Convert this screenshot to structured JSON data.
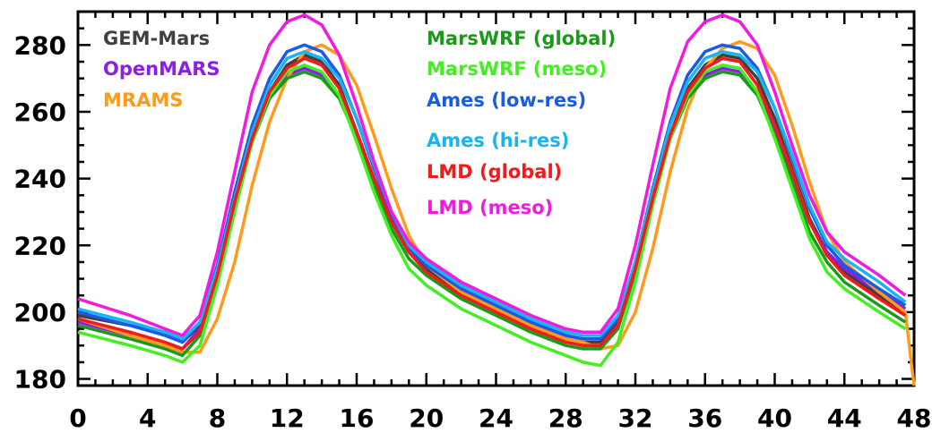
{
  "chart_data": {
    "type": "line",
    "title": "",
    "xlabel": "",
    "ylabel": "",
    "xlim": [
      0,
      48
    ],
    "ylim": [
      178,
      290
    ],
    "xticks": [
      0,
      4,
      8,
      12,
      16,
      20,
      24,
      28,
      32,
      36,
      40,
      44,
      48
    ],
    "yticks": [
      180,
      200,
      220,
      240,
      260,
      280
    ],
    "grid": false,
    "legend_placement": "top, two columns inside plot",
    "series": [
      {
        "name": "GEM-Mars",
        "color": "#404040",
        "x": [
          0,
          3,
          5,
          6,
          7,
          8,
          9,
          10,
          11,
          12,
          13,
          14,
          15,
          16,
          17,
          18,
          19,
          20,
          22,
          24,
          26,
          28,
          29,
          30,
          31,
          32,
          33,
          34,
          35,
          36,
          37,
          38,
          39,
          40,
          41,
          42,
          43,
          44,
          46,
          47.5
        ],
        "y": [
          199,
          196,
          194,
          191,
          196,
          212,
          232,
          252,
          266,
          274,
          277,
          275,
          268,
          254,
          240,
          227,
          218,
          213,
          206,
          201,
          196,
          192,
          191,
          191,
          197,
          213,
          234,
          253,
          267,
          274,
          277,
          276,
          270,
          258,
          243,
          228,
          218,
          212,
          205,
          200
        ]
      },
      {
        "name": "OpenMARS",
        "color": "#8B1FE8",
        "x": [
          0,
          3,
          5,
          6,
          7,
          8,
          9,
          10,
          11,
          12,
          13,
          14,
          15,
          16,
          17,
          18,
          19,
          20,
          22,
          24,
          26,
          28,
          29,
          30,
          31,
          32,
          33,
          34,
          35,
          36,
          37,
          38,
          39,
          40,
          41,
          42,
          43,
          44,
          46,
          47.5
        ],
        "y": [
          197,
          193,
          190,
          189,
          195,
          212,
          233,
          252,
          264,
          271,
          273,
          271,
          265,
          253,
          240,
          228,
          219,
          214,
          207,
          202,
          197,
          193,
          192,
          192,
          198,
          215,
          236,
          253,
          265,
          271,
          273,
          272,
          266,
          255,
          241,
          227,
          218,
          213,
          206,
          201
        ]
      },
      {
        "name": "MRAMS",
        "color": "#FF9A1A",
        "x": [
          0,
          3,
          5,
          6,
          7,
          8,
          9,
          10,
          11,
          12,
          13,
          14,
          15,
          16,
          17,
          18,
          19,
          20,
          22,
          24,
          26,
          28,
          29,
          30,
          31,
          32,
          33,
          34,
          35,
          36,
          37,
          38,
          39,
          40,
          41,
          42,
          43,
          44,
          46,
          47.5,
          48
        ],
        "y": [
          198,
          193,
          190,
          188,
          188,
          198,
          215,
          238,
          257,
          270,
          278,
          280,
          277,
          268,
          253,
          237,
          223,
          214,
          206,
          201,
          196,
          192,
          191,
          189,
          190,
          200,
          219,
          242,
          261,
          273,
          279,
          281,
          279,
          271,
          256,
          239,
          224,
          215,
          206,
          200,
          178
        ]
      },
      {
        "name": "MarsWRF (global)",
        "color": "#1A9A1A",
        "x": [
          0,
          3,
          5,
          6,
          7,
          8,
          9,
          10,
          11,
          12,
          13,
          14,
          15,
          16,
          17,
          18,
          19,
          20,
          22,
          24,
          26,
          28,
          29,
          30,
          31,
          32,
          33,
          34,
          35,
          36,
          37,
          38,
          39,
          40,
          41,
          42,
          43,
          44,
          46,
          47.5
        ],
        "y": [
          196,
          192,
          189,
          187,
          193,
          210,
          231,
          251,
          264,
          270,
          272,
          270,
          264,
          252,
          238,
          225,
          216,
          211,
          204,
          199,
          194,
          190,
          189,
          189,
          195,
          212,
          233,
          252,
          264,
          270,
          272,
          271,
          265,
          253,
          239,
          224,
          215,
          209,
          202,
          197
        ]
      },
      {
        "name": "MarsWRF (meso)",
        "color": "#44EE22",
        "x": [
          0,
          3,
          5,
          6,
          7,
          8,
          9,
          10,
          11,
          12,
          13,
          14,
          15,
          16,
          17,
          18,
          19,
          20,
          22,
          24,
          26,
          28,
          29,
          30,
          31,
          32,
          33,
          34,
          35,
          36,
          37,
          38,
          39,
          40,
          41,
          42,
          43,
          44,
          46,
          47.5
        ],
        "y": [
          194,
          190,
          187,
          185,
          190,
          208,
          230,
          251,
          265,
          272,
          274,
          272,
          265,
          251,
          236,
          223,
          213,
          208,
          201,
          196,
          191,
          187,
          185,
          184,
          191,
          209,
          232,
          252,
          265,
          272,
          274,
          273,
          266,
          252,
          237,
          222,
          212,
          207,
          200,
          195
        ]
      },
      {
        "name": "Ames (low-res)",
        "color": "#1A5AE8",
        "x": [
          0,
          3,
          5,
          6,
          7,
          8,
          9,
          10,
          11,
          12,
          13,
          14,
          15,
          16,
          17,
          18,
          19,
          20,
          22,
          24,
          26,
          28,
          29,
          30,
          31,
          32,
          33,
          34,
          35,
          36,
          37,
          38,
          39,
          40,
          41,
          42,
          43,
          44,
          46,
          47.5
        ],
        "y": [
          200,
          196,
          193,
          191,
          197,
          214,
          236,
          256,
          270,
          278,
          280,
          278,
          271,
          258,
          243,
          229,
          219,
          214,
          207,
          202,
          197,
          193,
          192,
          192,
          198,
          215,
          237,
          257,
          271,
          278,
          280,
          279,
          273,
          261,
          246,
          231,
          220,
          214,
          207,
          202
        ]
      },
      {
        "name": "Ames (hi-res)",
        "color": "#1AB4F0",
        "x": [
          0,
          3,
          5,
          6,
          7,
          8,
          9,
          10,
          11,
          12,
          13,
          14,
          15,
          16,
          17,
          18,
          19,
          20,
          22,
          24,
          26,
          28,
          29,
          30,
          31,
          32,
          33,
          34,
          35,
          36,
          37,
          38,
          39,
          40,
          41,
          42,
          43,
          44,
          46,
          47.5
        ],
        "y": [
          201,
          197,
          194,
          192,
          197,
          213,
          234,
          254,
          268,
          276,
          278,
          276,
          270,
          258,
          244,
          230,
          220,
          215,
          208,
          203,
          198,
          194,
          193,
          193,
          199,
          215,
          236,
          256,
          269,
          276,
          278,
          277,
          272,
          261,
          247,
          232,
          221,
          216,
          209,
          203
        ]
      },
      {
        "name": "LMD (global)",
        "color": "#F21A1A",
        "x": [
          0,
          3,
          5,
          6,
          7,
          8,
          9,
          10,
          11,
          12,
          13,
          14,
          15,
          16,
          17,
          18,
          19,
          20,
          22,
          24,
          26,
          28,
          29,
          30,
          31,
          32,
          33,
          34,
          35,
          36,
          37,
          38,
          39,
          40,
          41,
          42,
          43,
          44,
          46,
          47.5
        ],
        "y": [
          198,
          194,
          191,
          189,
          194,
          211,
          233,
          252,
          266,
          273,
          276,
          274,
          267,
          254,
          240,
          227,
          218,
          212,
          205,
          200,
          195,
          191,
          190,
          190,
          196,
          213,
          234,
          253,
          266,
          273,
          276,
          275,
          268,
          256,
          242,
          227,
          217,
          211,
          204,
          199
        ]
      },
      {
        "name": "LMD (meso)",
        "color": "#F21AE0",
        "x": [
          0,
          3,
          5,
          6,
          7,
          8,
          9,
          10,
          11,
          12,
          13,
          14,
          15,
          16,
          17,
          18,
          19,
          20,
          22,
          24,
          26,
          28,
          29,
          30,
          31,
          32,
          33,
          34,
          35,
          36,
          37,
          38,
          39,
          40,
          41,
          42,
          43,
          44,
          46,
          47.5
        ],
        "y": [
          204,
          199,
          195,
          193,
          199,
          218,
          242,
          266,
          280,
          287,
          289,
          286,
          277,
          262,
          245,
          230,
          221,
          216,
          209,
          204,
          199,
          195,
          194,
          194,
          201,
          220,
          244,
          267,
          281,
          287,
          289,
          287,
          280,
          266,
          250,
          235,
          224,
          218,
          211,
          205
        ]
      }
    ]
  }
}
